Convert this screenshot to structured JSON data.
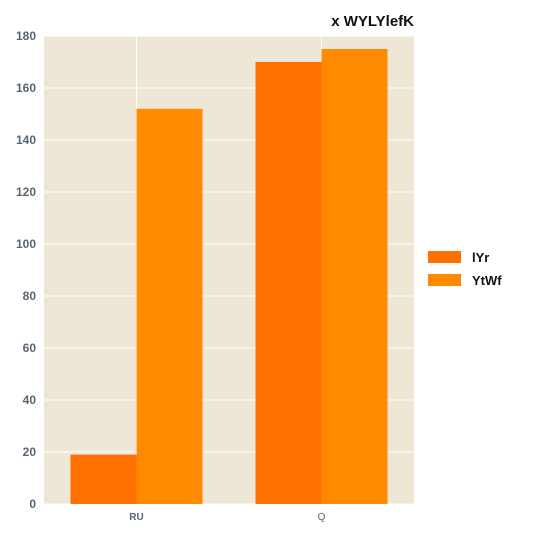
{
  "colors": {
    "background": "#ffffff",
    "plot_background": "#efe7d6",
    "grid": "#ffffff",
    "series": [
      "#ff7000",
      "#ff8a00"
    ]
  },
  "chart_data": {
    "type": "bar",
    "title": "x WYLYlefK",
    "xlabel": "",
    "ylabel": "",
    "categories": [
      "RU",
      "Q"
    ],
    "category_bold": [
      true,
      false
    ],
    "series": [
      {
        "name": "lYr",
        "values": [
          19,
          170
        ]
      },
      {
        "name": "YtWf",
        "values": [
          152,
          175
        ]
      }
    ],
    "ylim": [
      0,
      180
    ],
    "yticks": [
      0,
      20,
      40,
      60,
      80,
      100,
      120,
      140,
      160,
      180
    ],
    "grid": true,
    "legend_position": "right"
  }
}
